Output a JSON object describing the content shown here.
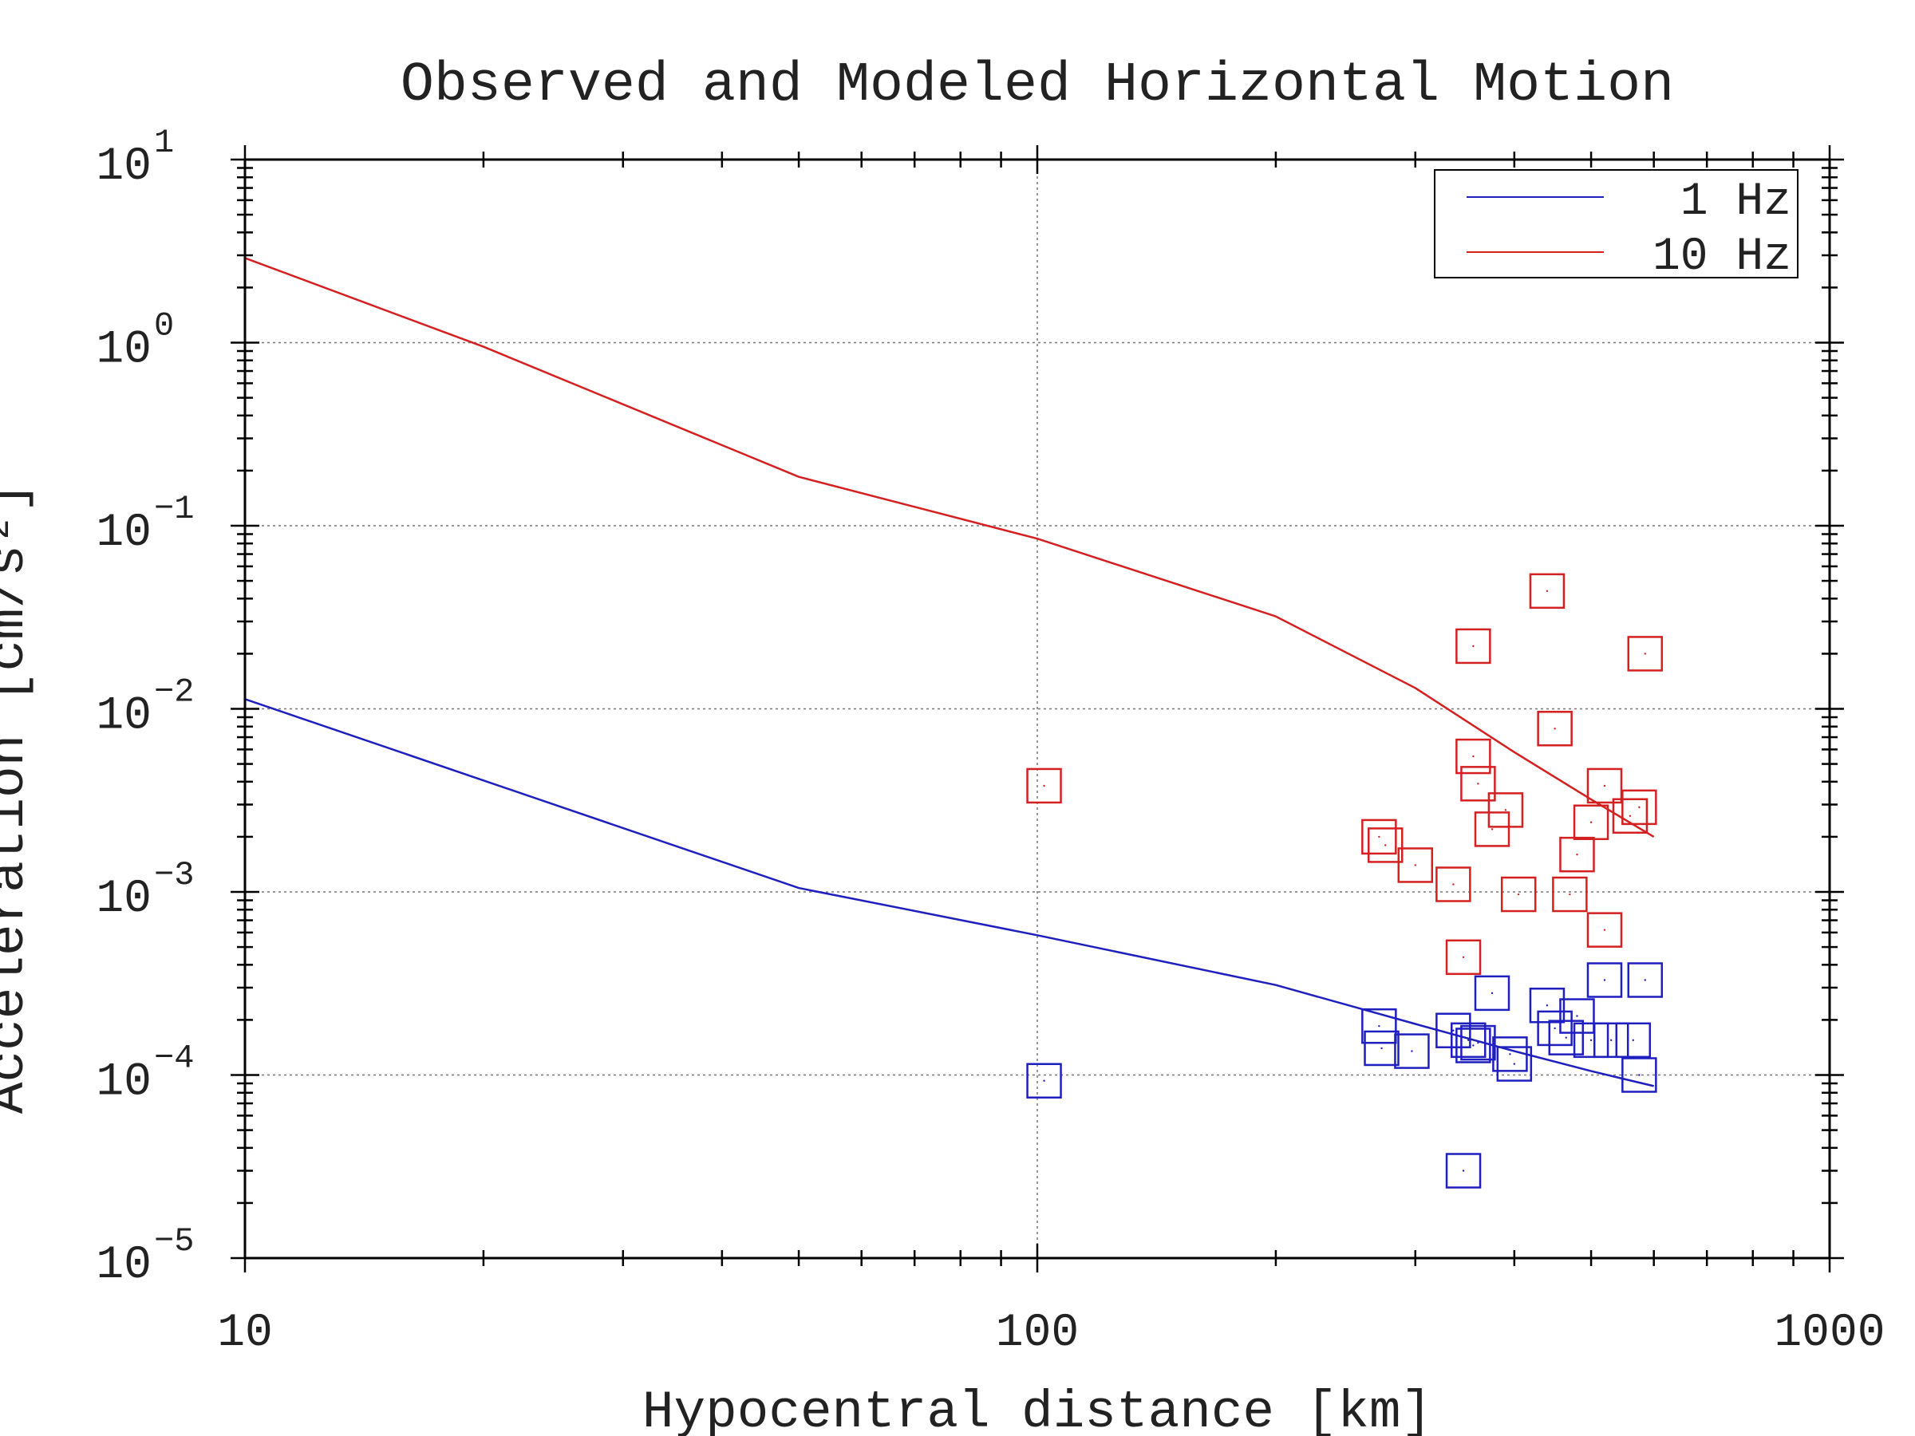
{
  "chart_data": {
    "type": "scatter",
    "title": "Observed and Modeled Horizontal Motion",
    "xlabel": "Hypocentral distance [km]",
    "ylabel": "Acceleration [cm/s²]",
    "xscale": "log",
    "yscale": "log",
    "xlim": [
      10,
      1000
    ],
    "ylim": [
      1e-05,
      10
    ],
    "x_tick_labels": [
      {
        "value": 10,
        "label": "10"
      },
      {
        "value": 100,
        "label": "100"
      },
      {
        "value": 1000,
        "label": "1000"
      }
    ],
    "y_tick_labels": [
      {
        "value": 10,
        "base": "10",
        "exp": "1"
      },
      {
        "value": 1,
        "base": "10",
        "exp": "0"
      },
      {
        "value": 0.1,
        "base": "10",
        "exp": "−1"
      },
      {
        "value": 0.01,
        "base": "10",
        "exp": "−2"
      },
      {
        "value": 0.001,
        "base": "10",
        "exp": "−3"
      },
      {
        "value": 0.0001,
        "base": "10",
        "exp": "−4"
      },
      {
        "value": 1e-05,
        "base": "10",
        "exp": "−5"
      }
    ],
    "grid": true,
    "legend_position": "top-right",
    "series": [
      {
        "name": "1 Hz",
        "color": "#1f1fbf",
        "model_line": [
          {
            "x": 10,
            "y": 0.0113
          },
          {
            "x": 50,
            "y": 0.00105
          },
          {
            "x": 100,
            "y": 0.00058
          },
          {
            "x": 200,
            "y": 0.00031
          },
          {
            "x": 300,
            "y": 0.00019
          },
          {
            "x": 400,
            "y": 0.000135
          },
          {
            "x": 500,
            "y": 0.000105
          },
          {
            "x": 600,
            "y": 8.7e-05
          }
        ],
        "observed": [
          {
            "x": 102,
            "y": 9.3e-05
          },
          {
            "x": 270,
            "y": 0.000185
          },
          {
            "x": 272,
            "y": 0.00014
          },
          {
            "x": 297,
            "y": 0.000135
          },
          {
            "x": 335,
            "y": 0.000175
          },
          {
            "x": 345,
            "y": 3e-05
          },
          {
            "x": 350,
            "y": 0.000155
          },
          {
            "x": 355,
            "y": 0.000145
          },
          {
            "x": 360,
            "y": 0.00015
          },
          {
            "x": 375,
            "y": 0.00028
          },
          {
            "x": 395,
            "y": 0.00013
          },
          {
            "x": 400,
            "y": 0.000115
          },
          {
            "x": 440,
            "y": 0.00024
          },
          {
            "x": 450,
            "y": 0.00018
          },
          {
            "x": 465,
            "y": 0.00016
          },
          {
            "x": 480,
            "y": 0.00021
          },
          {
            "x": 500,
            "y": 0.000155
          },
          {
            "x": 520,
            "y": 0.00033
          },
          {
            "x": 530,
            "y": 0.000155
          },
          {
            "x": 565,
            "y": 0.000155
          },
          {
            "x": 575,
            "y": 0.0001
          },
          {
            "x": 585,
            "y": 0.00033
          }
        ]
      },
      {
        "name": "10 Hz",
        "color": "#d42020",
        "model_line": [
          {
            "x": 10,
            "y": 2.9
          },
          {
            "x": 20,
            "y": 0.95
          },
          {
            "x": 50,
            "y": 0.185
          },
          {
            "x": 100,
            "y": 0.085
          },
          {
            "x": 200,
            "y": 0.032
          },
          {
            "x": 300,
            "y": 0.013
          },
          {
            "x": 400,
            "y": 0.0058
          },
          {
            "x": 500,
            "y": 0.0032
          },
          {
            "x": 600,
            "y": 0.002
          }
        ],
        "observed": [
          {
            "x": 102,
            "y": 0.0038
          },
          {
            "x": 270,
            "y": 0.002
          },
          {
            "x": 275,
            "y": 0.0018
          },
          {
            "x": 300,
            "y": 0.0014
          },
          {
            "x": 335,
            "y": 0.0011
          },
          {
            "x": 345,
            "y": 0.00044
          },
          {
            "x": 355,
            "y": 0.022
          },
          {
            "x": 355,
            "y": 0.0055
          },
          {
            "x": 360,
            "y": 0.0039
          },
          {
            "x": 375,
            "y": 0.0022
          },
          {
            "x": 390,
            "y": 0.0028
          },
          {
            "x": 405,
            "y": 0.00097
          },
          {
            "x": 440,
            "y": 0.044
          },
          {
            "x": 450,
            "y": 0.0078
          },
          {
            "x": 470,
            "y": 0.00097
          },
          {
            "x": 480,
            "y": 0.0016
          },
          {
            "x": 500,
            "y": 0.0024
          },
          {
            "x": 520,
            "y": 0.0038
          },
          {
            "x": 520,
            "y": 0.00062
          },
          {
            "x": 560,
            "y": 0.0026
          },
          {
            "x": 575,
            "y": 0.0029
          },
          {
            "x": 585,
            "y": 0.02
          }
        ]
      }
    ]
  }
}
